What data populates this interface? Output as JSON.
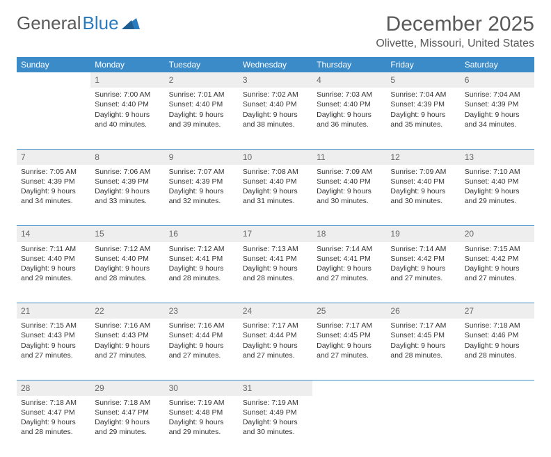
{
  "brand": {
    "part1": "General",
    "part2": "Blue"
  },
  "title": "December 2025",
  "location": "Olivette, Missouri, United States",
  "colors": {
    "header_bg": "#3b8bc9",
    "header_text": "#ffffff",
    "daynum_bg": "#eeeeee",
    "daynum_text": "#666666",
    "body_text": "#333333",
    "rule": "#3b8bc9",
    "brand_gray": "#5a5a5a",
    "brand_blue": "#2b7bbf"
  },
  "weekdays": [
    "Sunday",
    "Monday",
    "Tuesday",
    "Wednesday",
    "Thursday",
    "Friday",
    "Saturday"
  ],
  "weeks": [
    [
      {
        "n": "",
        "sunrise": "",
        "sunset": "",
        "daylight": ""
      },
      {
        "n": "1",
        "sunrise": "Sunrise: 7:00 AM",
        "sunset": "Sunset: 4:40 PM",
        "daylight": "Daylight: 9 hours and 40 minutes."
      },
      {
        "n": "2",
        "sunrise": "Sunrise: 7:01 AM",
        "sunset": "Sunset: 4:40 PM",
        "daylight": "Daylight: 9 hours and 39 minutes."
      },
      {
        "n": "3",
        "sunrise": "Sunrise: 7:02 AM",
        "sunset": "Sunset: 4:40 PM",
        "daylight": "Daylight: 9 hours and 38 minutes."
      },
      {
        "n": "4",
        "sunrise": "Sunrise: 7:03 AM",
        "sunset": "Sunset: 4:40 PM",
        "daylight": "Daylight: 9 hours and 36 minutes."
      },
      {
        "n": "5",
        "sunrise": "Sunrise: 7:04 AM",
        "sunset": "Sunset: 4:39 PM",
        "daylight": "Daylight: 9 hours and 35 minutes."
      },
      {
        "n": "6",
        "sunrise": "Sunrise: 7:04 AM",
        "sunset": "Sunset: 4:39 PM",
        "daylight": "Daylight: 9 hours and 34 minutes."
      }
    ],
    [
      {
        "n": "7",
        "sunrise": "Sunrise: 7:05 AM",
        "sunset": "Sunset: 4:39 PM",
        "daylight": "Daylight: 9 hours and 34 minutes."
      },
      {
        "n": "8",
        "sunrise": "Sunrise: 7:06 AM",
        "sunset": "Sunset: 4:39 PM",
        "daylight": "Daylight: 9 hours and 33 minutes."
      },
      {
        "n": "9",
        "sunrise": "Sunrise: 7:07 AM",
        "sunset": "Sunset: 4:39 PM",
        "daylight": "Daylight: 9 hours and 32 minutes."
      },
      {
        "n": "10",
        "sunrise": "Sunrise: 7:08 AM",
        "sunset": "Sunset: 4:40 PM",
        "daylight": "Daylight: 9 hours and 31 minutes."
      },
      {
        "n": "11",
        "sunrise": "Sunrise: 7:09 AM",
        "sunset": "Sunset: 4:40 PM",
        "daylight": "Daylight: 9 hours and 30 minutes."
      },
      {
        "n": "12",
        "sunrise": "Sunrise: 7:09 AM",
        "sunset": "Sunset: 4:40 PM",
        "daylight": "Daylight: 9 hours and 30 minutes."
      },
      {
        "n": "13",
        "sunrise": "Sunrise: 7:10 AM",
        "sunset": "Sunset: 4:40 PM",
        "daylight": "Daylight: 9 hours and 29 minutes."
      }
    ],
    [
      {
        "n": "14",
        "sunrise": "Sunrise: 7:11 AM",
        "sunset": "Sunset: 4:40 PM",
        "daylight": "Daylight: 9 hours and 29 minutes."
      },
      {
        "n": "15",
        "sunrise": "Sunrise: 7:12 AM",
        "sunset": "Sunset: 4:40 PM",
        "daylight": "Daylight: 9 hours and 28 minutes."
      },
      {
        "n": "16",
        "sunrise": "Sunrise: 7:12 AM",
        "sunset": "Sunset: 4:41 PM",
        "daylight": "Daylight: 9 hours and 28 minutes."
      },
      {
        "n": "17",
        "sunrise": "Sunrise: 7:13 AM",
        "sunset": "Sunset: 4:41 PM",
        "daylight": "Daylight: 9 hours and 28 minutes."
      },
      {
        "n": "18",
        "sunrise": "Sunrise: 7:14 AM",
        "sunset": "Sunset: 4:41 PM",
        "daylight": "Daylight: 9 hours and 27 minutes."
      },
      {
        "n": "19",
        "sunrise": "Sunrise: 7:14 AM",
        "sunset": "Sunset: 4:42 PM",
        "daylight": "Daylight: 9 hours and 27 minutes."
      },
      {
        "n": "20",
        "sunrise": "Sunrise: 7:15 AM",
        "sunset": "Sunset: 4:42 PM",
        "daylight": "Daylight: 9 hours and 27 minutes."
      }
    ],
    [
      {
        "n": "21",
        "sunrise": "Sunrise: 7:15 AM",
        "sunset": "Sunset: 4:43 PM",
        "daylight": "Daylight: 9 hours and 27 minutes."
      },
      {
        "n": "22",
        "sunrise": "Sunrise: 7:16 AM",
        "sunset": "Sunset: 4:43 PM",
        "daylight": "Daylight: 9 hours and 27 minutes."
      },
      {
        "n": "23",
        "sunrise": "Sunrise: 7:16 AM",
        "sunset": "Sunset: 4:44 PM",
        "daylight": "Daylight: 9 hours and 27 minutes."
      },
      {
        "n": "24",
        "sunrise": "Sunrise: 7:17 AM",
        "sunset": "Sunset: 4:44 PM",
        "daylight": "Daylight: 9 hours and 27 minutes."
      },
      {
        "n": "25",
        "sunrise": "Sunrise: 7:17 AM",
        "sunset": "Sunset: 4:45 PM",
        "daylight": "Daylight: 9 hours and 27 minutes."
      },
      {
        "n": "26",
        "sunrise": "Sunrise: 7:17 AM",
        "sunset": "Sunset: 4:45 PM",
        "daylight": "Daylight: 9 hours and 28 minutes."
      },
      {
        "n": "27",
        "sunrise": "Sunrise: 7:18 AM",
        "sunset": "Sunset: 4:46 PM",
        "daylight": "Daylight: 9 hours and 28 minutes."
      }
    ],
    [
      {
        "n": "28",
        "sunrise": "Sunrise: 7:18 AM",
        "sunset": "Sunset: 4:47 PM",
        "daylight": "Daylight: 9 hours and 28 minutes."
      },
      {
        "n": "29",
        "sunrise": "Sunrise: 7:18 AM",
        "sunset": "Sunset: 4:47 PM",
        "daylight": "Daylight: 9 hours and 29 minutes."
      },
      {
        "n": "30",
        "sunrise": "Sunrise: 7:19 AM",
        "sunset": "Sunset: 4:48 PM",
        "daylight": "Daylight: 9 hours and 29 minutes."
      },
      {
        "n": "31",
        "sunrise": "Sunrise: 7:19 AM",
        "sunset": "Sunset: 4:49 PM",
        "daylight": "Daylight: 9 hours and 30 minutes."
      },
      {
        "n": "",
        "sunrise": "",
        "sunset": "",
        "daylight": ""
      },
      {
        "n": "",
        "sunrise": "",
        "sunset": "",
        "daylight": ""
      },
      {
        "n": "",
        "sunrise": "",
        "sunset": "",
        "daylight": ""
      }
    ]
  ]
}
